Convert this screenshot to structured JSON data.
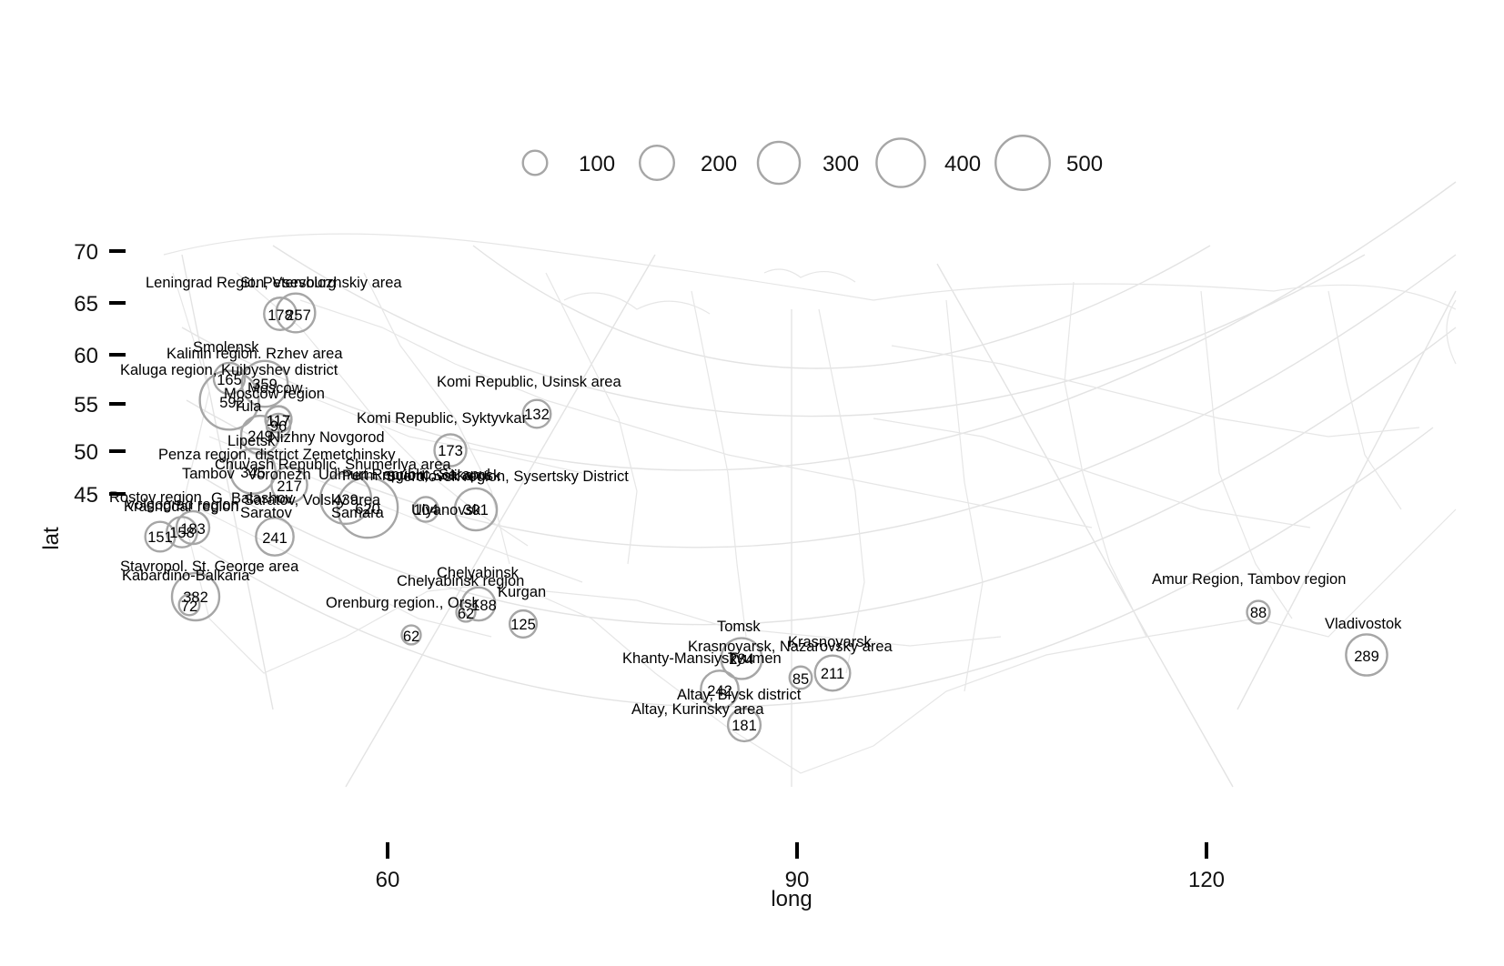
{
  "map": {
    "x_axis_title": "long",
    "y_axis_title": "lat",
    "x_ticks": [
      "60",
      "90",
      "120"
    ],
    "y_ticks": [
      "70",
      "65",
      "60",
      "55",
      "50",
      "45"
    ],
    "colors": {
      "bubble": "#a6a6a6",
      "boundary": "#e6e6e6",
      "graticule": "#e3e3e3",
      "text": "#000000"
    }
  },
  "legend": {
    "title": "",
    "items": [
      {
        "label": "100",
        "value": 100
      },
      {
        "label": "200",
        "value": 200
      },
      {
        "label": "300",
        "value": 300
      },
      {
        "label": "400",
        "value": 400
      },
      {
        "label": "500",
        "value": 500
      }
    ]
  },
  "places": [
    {
      "name": "Leningrad Region, Vsevolozhskiy area",
      "value": "178"
    },
    {
      "name": "St. Petersburg",
      "value": "257"
    },
    {
      "name": "Smolensk",
      "value": "165"
    },
    {
      "name": "Kalinin region. Rzhev area",
      "value": "359"
    },
    {
      "name": "Kaluga region, Kuibyshev district",
      "value": "592"
    },
    {
      "name": "Moscow",
      "value": "117"
    },
    {
      "name": "Moscow region",
      "value": "117"
    },
    {
      "name": "Tula",
      "value": "96"
    },
    {
      "name": "Lipetsk",
      "value": "249"
    },
    {
      "name": "Nizhny Novgorod",
      "value": ""
    },
    {
      "name": "Penza region, district Zemetchinsky",
      "value": ""
    },
    {
      "name": "Tambov",
      "value": "345"
    },
    {
      "name": "Voronezh",
      "value": "217"
    },
    {
      "name": "Chuvash Republic, Shumerlya area",
      "value": ""
    },
    {
      "name": "Udmurt Republic, Sarapul",
      "value": ""
    },
    {
      "name": "Perm region, Solikamsk",
      "value": ""
    },
    {
      "name": "Komi Republic, Usinsk area",
      "value": "132"
    },
    {
      "name": "Komi Republic, Syktyvkar",
      "value": "173"
    },
    {
      "name": "Sverdlovsk region, Sysertsky District",
      "value": "301"
    },
    {
      "name": "Saratov",
      "value": ""
    },
    {
      "name": "Saratov, Volsky area",
      "value": "439"
    },
    {
      "name": "Samara",
      "value": "620"
    },
    {
      "name": "Ulyanovsk",
      "value": "104"
    },
    {
      "name": "Rostov region",
      "value": "151"
    },
    {
      "name": "Krasnodar region",
      "value": "158"
    },
    {
      "name": "Volgograd region",
      "value": "183"
    },
    {
      "name": "G. Balashov",
      "value": "241"
    },
    {
      "name": "Stavropol. St. George area",
      "value": "382"
    },
    {
      "name": "Kabardino-Balkaria",
      "value": "72"
    },
    {
      "name": "Chelyabinsk",
      "value": "188"
    },
    {
      "name": "Chelyabinsk region",
      "value": "62"
    },
    {
      "name": "Orenburg region., Orsk",
      "value": "62"
    },
    {
      "name": "Kurgan",
      "value": "125"
    },
    {
      "name": "Tomsk",
      "value": ""
    },
    {
      "name": "Krasnoyarsk",
      "value": "211"
    },
    {
      "name": "Krasnoyarsk, Nazarovsky area",
      "value": "85"
    },
    {
      "name": "Khanty-Mansiysk",
      "value": "284"
    },
    {
      "name": "Tyumen",
      "value": ""
    },
    {
      "name": "Altay, Biysk district",
      "value": "242"
    },
    {
      "name": "Altay, Kurinsky area",
      "value": "181"
    },
    {
      "name": "Amur Region, Tambov region",
      "value": "88"
    },
    {
      "name": "Vladivostok",
      "value": "289"
    }
  ]
}
